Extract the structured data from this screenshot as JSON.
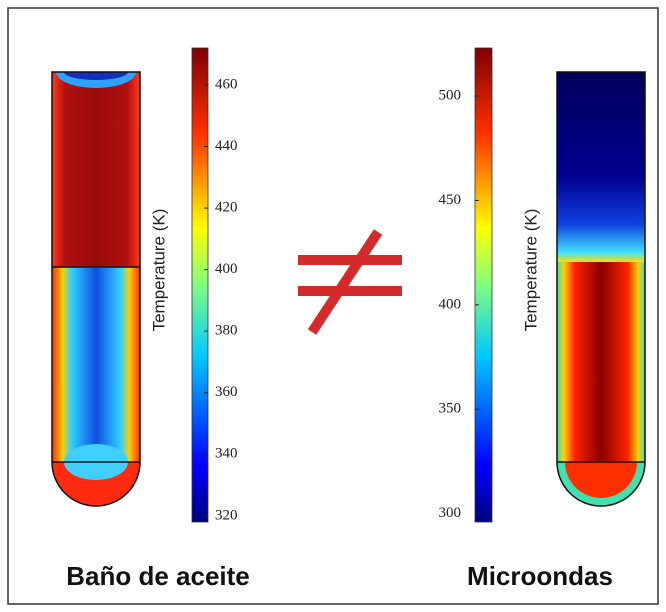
{
  "panels": [
    {
      "caption": "Baño de aceite",
      "colorbar": {
        "label": "Temperature (K)",
        "lim": [
          318,
          472
        ],
        "ticks": [
          320,
          340,
          360,
          380,
          400,
          420,
          440,
          460
        ]
      }
    },
    {
      "caption": "Microondas",
      "colorbar": {
        "label": "Temperature (K)",
        "lim": [
          296,
          523
        ],
        "ticks": [
          300,
          350,
          400,
          450,
          500
        ]
      }
    }
  ]
}
